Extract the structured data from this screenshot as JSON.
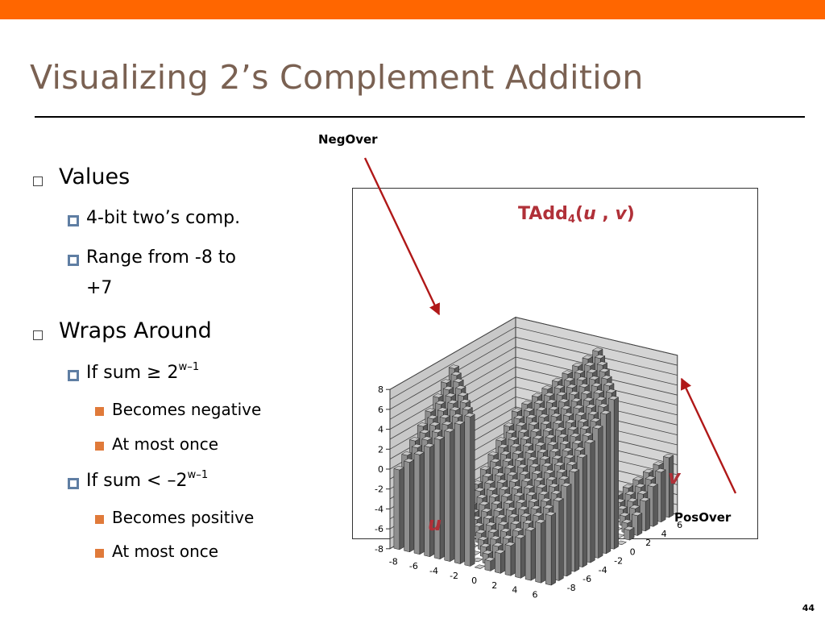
{
  "slide": {
    "title": "Visualizing 2’s Complement Addition",
    "page_number": "44",
    "accent_color": "#ff6600",
    "title_color": "#7a6152"
  },
  "bullets": {
    "values": "Values",
    "fourbit": "4-bit two’s comp.",
    "range_a": "Range from -8 to",
    "range_b": "+7",
    "wraps": "Wraps Around",
    "if1_pre": "If sum ≥ 2",
    "if1_sup": "w–1",
    "neg": "Becomes negative",
    "once1": "At most once",
    "if2_pre": "If sum < –2",
    "if2_sup": "w–1",
    "pos": "Becomes positive",
    "once2": "At most once"
  },
  "chart_title": {
    "pre": "TAdd",
    "sub": "4",
    "open": "(",
    "u": "u",
    "sep": " , ",
    "v": "v",
    "close": ")"
  },
  "callouts": {
    "negover": "NegOver",
    "posover": "PosOver"
  },
  "axis_vars": {
    "u": "u",
    "v": "v"
  },
  "chart_data": {
    "type": "3d-bar",
    "title": "TAdd4(u , v)",
    "xlabel": "u",
    "ylabel": "v",
    "u_values": [
      -8,
      -7,
      -6,
      -5,
      -4,
      -3,
      -2,
      -1,
      0,
      1,
      2,
      3,
      4,
      5,
      6,
      7
    ],
    "v_values": [
      -8,
      -7,
      -6,
      -5,
      -4,
      -3,
      -2,
      -1,
      0,
      1,
      2,
      3,
      4,
      5,
      6,
      7
    ],
    "u_tick_labels": [
      "-8",
      "-6",
      "-4",
      "-2",
      "0",
      "2",
      "4",
      "6"
    ],
    "v_tick_labels": [
      "-8",
      "-6",
      "-4",
      "-2",
      "0",
      "2",
      "4",
      "6"
    ],
    "z_tick_labels": [
      "8",
      "6",
      "4",
      "2",
      "0",
      "-2",
      "-4",
      "-6",
      "-8"
    ],
    "zlim": [
      -8,
      8
    ],
    "rule": "value = u + v, wrapped into [-8, 7]: u+v ≥ 8 → u+v−16 (PosOver); u+v < −8 → u+v+16 (NegOver)",
    "colors": {
      "bar": "#909090",
      "wall": "#c8c8c8",
      "arrow": "#b01818"
    }
  }
}
